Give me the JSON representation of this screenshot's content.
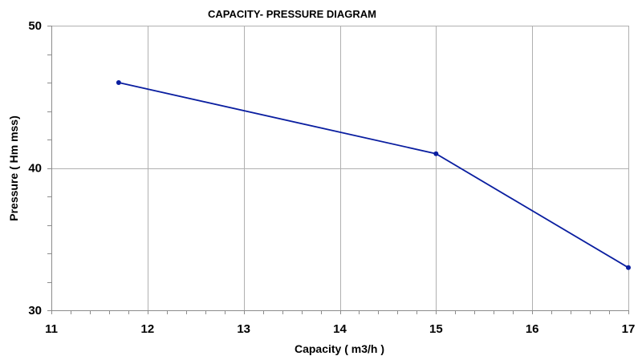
{
  "chart_data": {
    "type": "line",
    "title": "CAPACITY- PRESSURE DIAGRAM",
    "xlabel": "Capacity ( m3/h )",
    "ylabel": "Pressure ( Hm mss)",
    "xlim": [
      11,
      17
    ],
    "ylim": [
      30,
      50
    ],
    "x_major_step": 1,
    "x_minor_step": 0.2,
    "y_major_step": 10,
    "y_minor_step": 2,
    "x_ticks": [
      "11",
      "12",
      "13",
      "14",
      "15",
      "16",
      "17"
    ],
    "y_ticks": [
      "30",
      "40",
      "50"
    ],
    "grid": true,
    "legend": "none",
    "series": [
      {
        "name": "Pressure",
        "color": "#0a1ea0",
        "marker": "circle",
        "x": [
          11.7,
          15,
          17
        ],
        "y": [
          46,
          41,
          33
        ]
      }
    ]
  }
}
